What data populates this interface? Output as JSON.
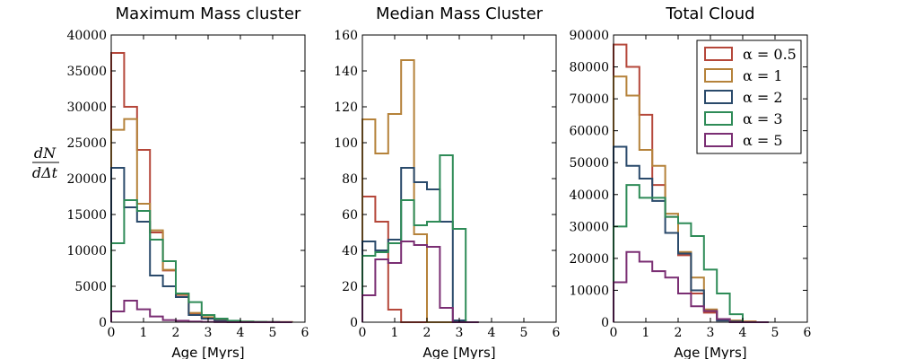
{
  "figure": {
    "ylabel_num": "dN",
    "ylabel_den": "dΔt"
  },
  "legend": {
    "placement": "top-right of third panel",
    "entries": [
      {
        "label": "α = 0.5",
        "color": "#B5473A"
      },
      {
        "label": "α = 1",
        "color": "#B5823A"
      },
      {
        "label": "α = 2",
        "color": "#2A4A6B"
      },
      {
        "label": "α = 3",
        "color": "#2E8B57"
      },
      {
        "label": "α = 5",
        "color": "#7A2E73"
      }
    ]
  },
  "chart_data": [
    {
      "type": "histogram-step",
      "title": "Maximum Mass cluster",
      "xlabel": "Age [Myrs]",
      "ylabel": "dN/dΔt",
      "xlim": [
        0,
        6
      ],
      "ylim": [
        0,
        40000
      ],
      "xticks": [
        "0",
        "1",
        "2",
        "3",
        "4",
        "5",
        "6"
      ],
      "yticks": [
        "0",
        "5000",
        "10000",
        "15000",
        "20000",
        "25000",
        "30000",
        "35000",
        "40000"
      ],
      "bin_edges": [
        0,
        0.4,
        0.8,
        1.2,
        1.6,
        2.0,
        2.4,
        2.8,
        3.2,
        3.6,
        4.0,
        4.4,
        4.8,
        5.2,
        5.6
      ],
      "series": [
        {
          "name": "α = 0.5",
          "values": [
            37500,
            30000,
            24000,
            12500,
            7200,
            3800,
            1200,
            600,
            300,
            150,
            80,
            40,
            20,
            10
          ]
        },
        {
          "name": "α = 1",
          "values": [
            26800,
            28300,
            16500,
            12800,
            7300,
            3900,
            1300,
            700,
            300,
            150,
            80,
            40,
            20,
            10
          ]
        },
        {
          "name": "α = 2",
          "values": [
            21500,
            16000,
            14000,
            6500,
            5000,
            3500,
            1000,
            500,
            200,
            100,
            50,
            20,
            10,
            0
          ]
        },
        {
          "name": "α = 3",
          "values": [
            11000,
            17000,
            15500,
            11500,
            8500,
            4000,
            2800,
            1000,
            500,
            200,
            100,
            40,
            20,
            0
          ]
        },
        {
          "name": "α = 5",
          "values": [
            1500,
            3000,
            1800,
            800,
            300,
            200,
            100,
            50,
            20,
            0,
            0,
            0,
            0,
            0
          ]
        }
      ]
    },
    {
      "type": "histogram-step",
      "title": "Median Mass Cluster",
      "xlabel": "Age [Myrs]",
      "ylabel": "dN/dΔt",
      "xlim": [
        0,
        6
      ],
      "ylim": [
        0,
        160
      ],
      "xticks": [
        "0",
        "1",
        "2",
        "3",
        "4",
        "5",
        "6"
      ],
      "yticks": [
        "0",
        "20",
        "40",
        "60",
        "80",
        "100",
        "120",
        "140",
        "160"
      ],
      "bin_edges": [
        0,
        0.4,
        0.8,
        1.2,
        1.6,
        2.0,
        2.4,
        2.8,
        3.2,
        3.6
      ],
      "series": [
        {
          "name": "α = 0.5",
          "values": [
            70,
            56,
            7,
            0,
            0,
            0,
            0,
            0,
            0
          ]
        },
        {
          "name": "α = 1",
          "values": [
            113,
            94,
            116,
            146,
            49,
            0,
            0,
            0,
            0
          ]
        },
        {
          "name": "α = 2",
          "values": [
            45,
            40,
            46,
            86,
            78,
            74,
            56,
            1,
            0
          ]
        },
        {
          "name": "α = 3",
          "values": [
            37,
            39,
            44,
            68,
            54,
            56,
            93,
            52,
            0
          ]
        },
        {
          "name": "α = 5",
          "values": [
            15,
            35,
            33,
            45,
            43,
            42,
            8,
            0,
            0
          ]
        }
      ]
    },
    {
      "type": "histogram-step",
      "title": "Total Cloud",
      "xlabel": "Age [Myrs]",
      "ylabel": "dN/dΔt",
      "xlim": [
        0,
        6
      ],
      "ylim": [
        0,
        90000
      ],
      "xticks": [
        "0",
        "1",
        "2",
        "3",
        "4",
        "5",
        "6"
      ],
      "yticks": [
        "0",
        "10000",
        "20000",
        "30000",
        "40000",
        "50000",
        "60000",
        "70000",
        "80000",
        "90000"
      ],
      "bin_edges": [
        0,
        0.4,
        0.8,
        1.2,
        1.6,
        2.0,
        2.4,
        2.8,
        3.2,
        3.6,
        4.0,
        4.4,
        4.8
      ],
      "series": [
        {
          "name": "α = 0.5",
          "values": [
            87000,
            80000,
            65000,
            43000,
            33000,
            21000,
            9000,
            3000,
            1000,
            500,
            200,
            0
          ]
        },
        {
          "name": "α = 1",
          "values": [
            77000,
            71000,
            54000,
            49000,
            34000,
            22000,
            14000,
            4000,
            1000,
            500,
            200,
            0
          ]
        },
        {
          "name": "α = 2",
          "values": [
            55000,
            49000,
            45000,
            38000,
            28000,
            21500,
            10000,
            3500,
            500,
            200,
            0,
            0
          ]
        },
        {
          "name": "α = 3",
          "values": [
            30000,
            43000,
            39000,
            39000,
            33000,
            31000,
            27000,
            16500,
            9000,
            2500,
            0,
            0
          ]
        },
        {
          "name": "α = 5",
          "values": [
            12500,
            22000,
            19000,
            16000,
            14000,
            9000,
            5000,
            3500,
            1000,
            0,
            0,
            0
          ]
        }
      ]
    }
  ]
}
